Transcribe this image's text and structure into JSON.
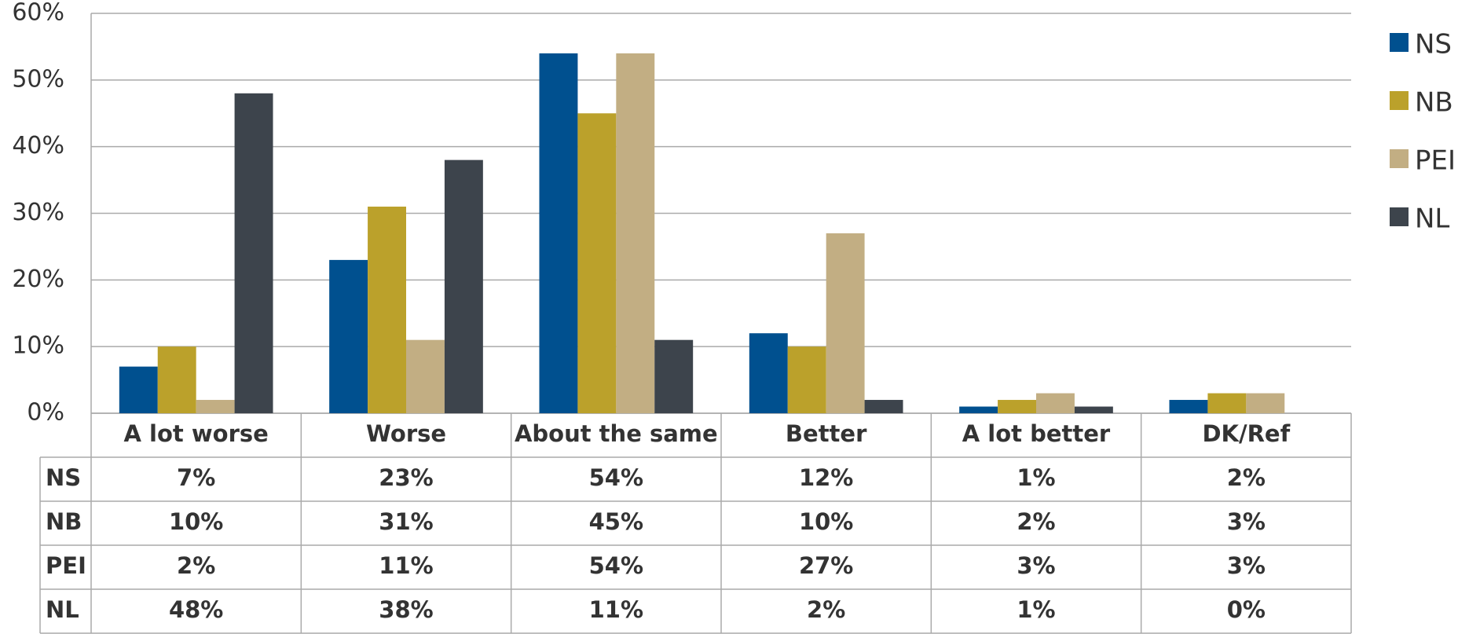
{
  "chart_data": {
    "type": "bar",
    "categories": [
      "A lot worse",
      "Worse",
      "About the same",
      "Better",
      "A lot better",
      "DK/Ref"
    ],
    "series": [
      {
        "name": "NS",
        "color": "#00508f",
        "values": [
          7,
          23,
          54,
          12,
          1,
          2
        ],
        "value_labels": [
          "7%",
          "23%",
          "54%",
          "12%",
          "1%",
          "2%"
        ]
      },
      {
        "name": "NB",
        "color": "#bba12b",
        "values": [
          10,
          31,
          45,
          10,
          2,
          3
        ],
        "value_labels": [
          "10%",
          "31%",
          "45%",
          "10%",
          "2%",
          "3%"
        ]
      },
      {
        "name": "PEI",
        "color": "#c2ae83",
        "values": [
          2,
          11,
          54,
          27,
          3,
          3
        ],
        "value_labels": [
          "2%",
          "11%",
          "54%",
          "27%",
          "3%",
          "3%"
        ]
      },
      {
        "name": "NL",
        "color": "#3d444c",
        "values": [
          48,
          38,
          11,
          2,
          1,
          0
        ],
        "value_labels": [
          "48%",
          "38%",
          "11%",
          "2%",
          "1%",
          "0%"
        ]
      }
    ],
    "ylim": [
      0,
      60
    ],
    "yticks": [
      {
        "value": 0,
        "label": "0%"
      },
      {
        "value": 10,
        "label": "10%"
      },
      {
        "value": 20,
        "label": "20%"
      },
      {
        "value": 30,
        "label": "30%"
      },
      {
        "value": 40,
        "label": "40%"
      },
      {
        "value": 50,
        "label": "50%"
      },
      {
        "value": 60,
        "label": "60%"
      }
    ],
    "grid": true,
    "legend": "right"
  }
}
